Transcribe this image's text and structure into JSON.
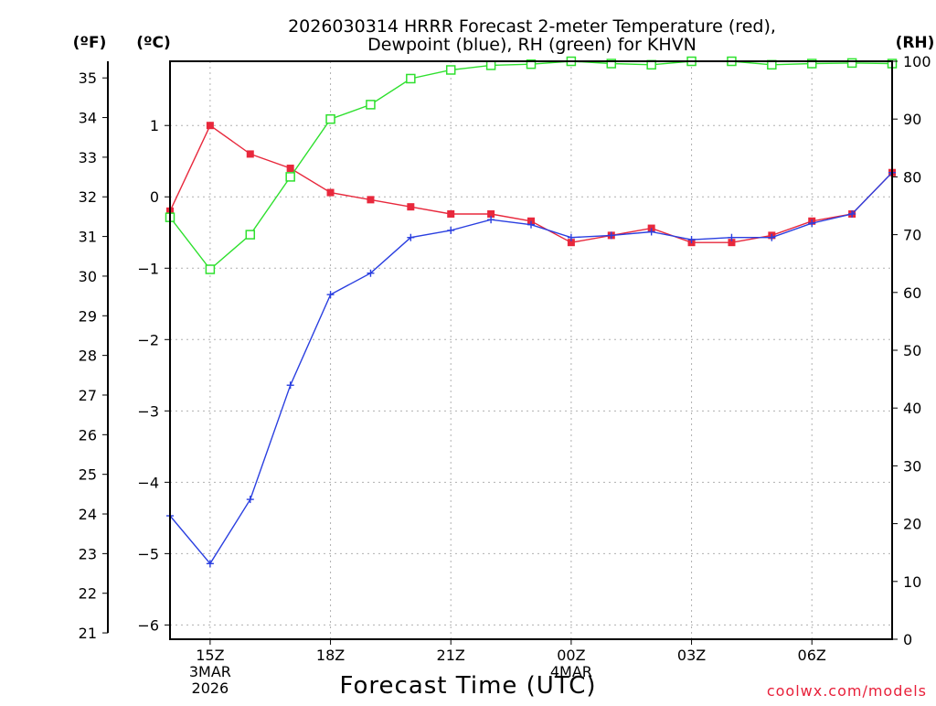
{
  "chart_data": {
    "type": "line",
    "title_lines": [
      "2026030314 HRRR Forecast 2-meter Temperature (red),",
      "Dewpoint (blue), RH (green) for KHVN"
    ],
    "xlabel": "Forecast Time (UTC)",
    "credit": "coolwx.com/models",
    "units": {
      "left_f": "(ºF)",
      "left_c": "(ºC)",
      "right_rh": "(RH)"
    },
    "x_hours": [
      14,
      15,
      16,
      17,
      18,
      19,
      20,
      21,
      22,
      23,
      24,
      25,
      26,
      27,
      28,
      29,
      30,
      31,
      32
    ],
    "x_ticks": [
      {
        "hour": 15,
        "label": "15Z",
        "sub1": "3MAR",
        "sub2": "2026"
      },
      {
        "hour": 18,
        "label": "18Z",
        "sub1": "",
        "sub2": ""
      },
      {
        "hour": 21,
        "label": "21Z",
        "sub1": "",
        "sub2": ""
      },
      {
        "hour": 24,
        "label": "00Z",
        "sub1": "4MAR",
        "sub2": ""
      },
      {
        "hour": 27,
        "label": "03Z",
        "sub1": "",
        "sub2": ""
      },
      {
        "hour": 30,
        "label": "06Z",
        "sub1": "",
        "sub2": ""
      }
    ],
    "x_range": [
      14,
      32
    ],
    "celsius_range": [
      -6.2,
      1.9
    ],
    "fahrenheit_ticks": [
      21,
      22,
      23,
      24,
      25,
      26,
      27,
      28,
      29,
      30,
      31,
      32,
      33,
      34,
      35
    ],
    "celsius_ticks": [
      -6,
      -5,
      -4,
      -3,
      -2,
      -1,
      0,
      1
    ],
    "rh_range": [
      0,
      100
    ],
    "rh_ticks": [
      0,
      10,
      20,
      30,
      40,
      50,
      60,
      70,
      80,
      90,
      100
    ],
    "series": [
      {
        "name": "Temperature",
        "axis": "celsius",
        "color": "#e8283c",
        "marker": "filled-square",
        "values": [
          -0.2,
          1.0,
          0.6,
          0.4,
          0.06,
          -0.04,
          -0.14,
          -0.24,
          -0.24,
          -0.34,
          -0.64,
          -0.54,
          -0.44,
          -0.64,
          -0.64,
          -0.54,
          -0.34,
          -0.24,
          0.34
        ]
      },
      {
        "name": "Dewpoint",
        "axis": "celsius",
        "color": "#2a3fe0",
        "marker": "plus",
        "values": [
          -4.47,
          -5.14,
          -4.24,
          -2.64,
          -1.37,
          -1.07,
          -0.57,
          -0.47,
          -0.32,
          -0.39,
          -0.57,
          -0.54,
          -0.49,
          -0.6,
          -0.57,
          -0.57,
          -0.37,
          -0.24,
          0.34
        ]
      },
      {
        "name": "Relative Humidity",
        "axis": "rh",
        "color": "#2ee02e",
        "marker": "open-square",
        "values": [
          73,
          64,
          70,
          80,
          90,
          92.5,
          97,
          98.5,
          99.3,
          99.5,
          100,
          99.6,
          99.4,
          100,
          100,
          99.4,
          99.6,
          99.7,
          99.6
        ]
      }
    ]
  }
}
